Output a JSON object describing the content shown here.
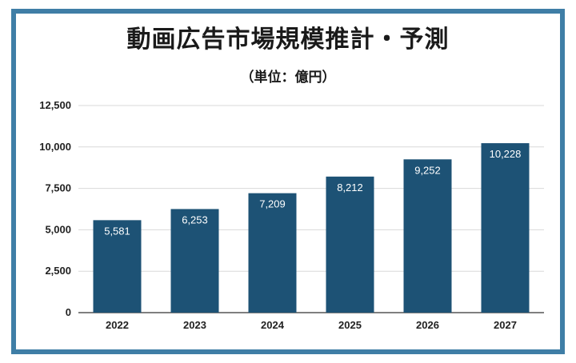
{
  "chart_data": {
    "type": "bar",
    "title": "動画広告市場規模推計・予測",
    "subtitle": "（単位：億円）",
    "categories": [
      "2022",
      "2023",
      "2024",
      "2025",
      "2026",
      "2027"
    ],
    "values": [
      5581,
      6253,
      7209,
      8212,
      9252,
      10228
    ],
    "value_labels": [
      "5,581",
      "6,253",
      "7,209",
      "8,212",
      "9,252",
      "10,228"
    ],
    "yticks": [
      0,
      2500,
      5000,
      7500,
      10000,
      12500
    ],
    "ytick_labels": [
      "0",
      "2,500",
      "5,000",
      "7,500",
      "10,000",
      "12,500"
    ],
    "ylim": [
      0,
      12500
    ],
    "grid": true,
    "legend": "none",
    "colors": {
      "bar": "#1d5275",
      "border": "#3f7ea6",
      "grid": "#d9d9d9"
    }
  }
}
